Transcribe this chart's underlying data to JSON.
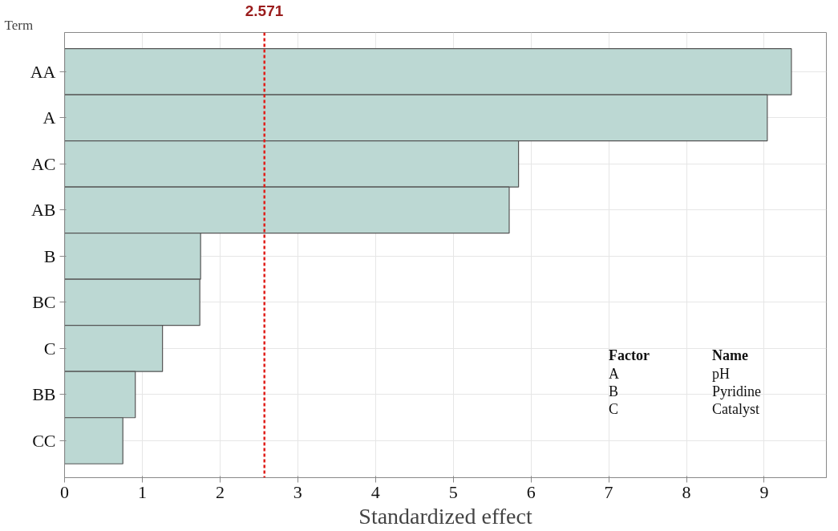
{
  "chart_data": {
    "type": "bar",
    "orientation": "horizontal",
    "ylabel": "Term",
    "xlabel": "Standardized effect",
    "categories": [
      "AA",
      "A",
      "AC",
      "AB",
      "B",
      "BC",
      "C",
      "BB",
      "CC"
    ],
    "series": [
      {
        "color": "#bcd8d3",
        "values": [
          9.35,
          9.04,
          5.84,
          5.72,
          1.75,
          1.74,
          1.26,
          0.91,
          0.75
        ]
      }
    ],
    "xlim": [
      0,
      9.8
    ],
    "xticks": [
      0,
      1,
      2,
      3,
      4,
      5,
      6,
      7,
      8,
      9
    ],
    "grid": true,
    "ref_lines": [
      {
        "axis": "x",
        "value": 2.571,
        "label": "2.571",
        "color": "#e0201c",
        "line_style": "dashed"
      }
    ],
    "annotations": [
      "Factor",
      "Name",
      "A",
      "pH",
      "B",
      "Pyridine",
      "C",
      "Catalyst"
    ]
  }
}
